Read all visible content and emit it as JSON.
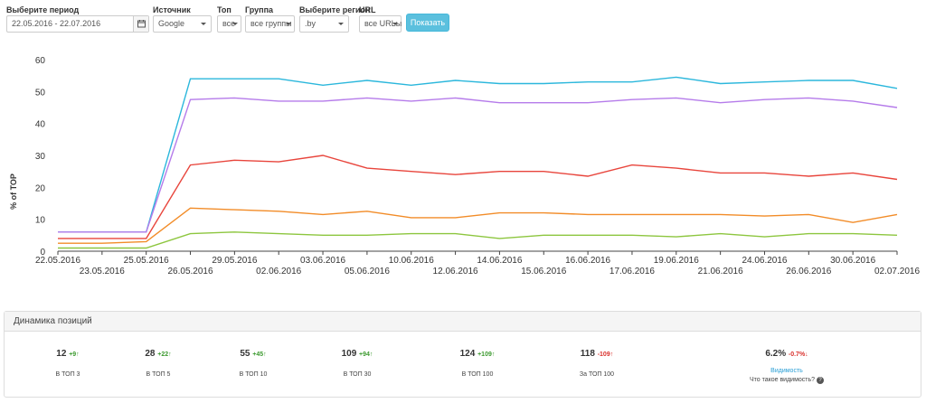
{
  "filters": {
    "period": {
      "label": "Выберите период",
      "value": "22.05.2016 - 22.07.2016"
    },
    "source": {
      "label": "Источник",
      "value": "Google"
    },
    "top": {
      "label": "Топ",
      "value": "все"
    },
    "group": {
      "label": "Группа",
      "value": "все группы"
    },
    "region": {
      "label": "Выберите регион",
      "value": ".by"
    },
    "url": {
      "label": "URL",
      "value": "все URLы"
    },
    "show_button": "Показать",
    "icons": {
      "calendar": "calendar-icon",
      "dropdown": "chevron-down-icon"
    },
    "colors": {
      "button": "#5bc0de"
    }
  },
  "chart_data": {
    "type": "line",
    "ylabel": "% of TOP",
    "ylim": [
      0,
      60
    ],
    "yticks": [
      0,
      10,
      20,
      30,
      40,
      50,
      60
    ],
    "grid": false,
    "x": [
      "22.05.2016",
      "23.05.2016",
      "25.05.2016",
      "26.05.2016",
      "29.05.2016",
      "02.06.2016",
      "03.06.2016",
      "05.06.2016",
      "10.06.2016",
      "12.06.2016",
      "14.06.2016",
      "15.06.2016",
      "16.06.2016",
      "17.06.2016",
      "19.06.2016",
      "21.06.2016",
      "24.06.2016",
      "26.06.2016",
      "30.06.2016",
      "02.07.2016"
    ],
    "series": [
      {
        "color": "#2bb7dc",
        "values": [
          6,
          6,
          6,
          54,
          54,
          54,
          52,
          53.5,
          52,
          53.5,
          52.5,
          52.5,
          53,
          53,
          54.5,
          52.5,
          53,
          53.5,
          53.5,
          51
        ]
      },
      {
        "color": "#b57bea",
        "values": [
          6,
          6,
          6,
          47.5,
          48,
          47,
          47,
          48,
          47,
          48,
          46.5,
          46.5,
          46.5,
          47.5,
          48,
          46.5,
          47.5,
          48,
          47,
          45
        ]
      },
      {
        "color": "#e8453c",
        "values": [
          4,
          4,
          4,
          27,
          28.5,
          28,
          30,
          26,
          25,
          24,
          25,
          25,
          23.5,
          27,
          26,
          24.5,
          24.5,
          23.5,
          24.5,
          22.5
        ]
      },
      {
        "color": "#f28c28",
        "values": [
          2.5,
          2.5,
          3,
          13.5,
          13,
          12.5,
          11.5,
          12.5,
          10.5,
          10.5,
          12,
          12,
          11.5,
          11.5,
          11.5,
          11.5,
          11,
          11.5,
          9,
          11.5
        ]
      },
      {
        "color": "#8dc63f",
        "values": [
          1,
          1,
          1,
          5.5,
          6,
          5.5,
          5,
          5,
          5.5,
          5.5,
          4,
          5,
          5,
          5,
          4.5,
          5.5,
          4.5,
          5.5,
          5.5,
          5
        ]
      }
    ]
  },
  "panel": {
    "title": "Динамика позиций",
    "stats": [
      {
        "value": "12",
        "delta": "+9",
        "arrow": "↑",
        "dir": "up",
        "label": "В ТОП 3"
      },
      {
        "value": "28",
        "delta": "+22",
        "arrow": "↑",
        "dir": "up",
        "label": "В ТОП 5"
      },
      {
        "value": "55",
        "delta": "+45",
        "arrow": "↑",
        "dir": "up",
        "label": "В ТОП 10"
      },
      {
        "value": "109",
        "delta": "+94",
        "arrow": "↑",
        "dir": "up",
        "label": "В ТОП 30"
      },
      {
        "value": "124",
        "delta": "+109",
        "arrow": "↑",
        "dir": "up",
        "label": "В ТОП 100"
      },
      {
        "value": "118",
        "delta": "-109",
        "arrow": "↑",
        "dir": "down",
        "label": "За ТОП 100"
      },
      {
        "value": "6.2%",
        "delta": "-0.7%",
        "arrow": "↓",
        "dir": "down",
        "label": ""
      }
    ],
    "visibility_link": "Видимость",
    "visibility_question": "Что такое видимость?",
    "icons": {
      "help": "question-icon"
    }
  }
}
